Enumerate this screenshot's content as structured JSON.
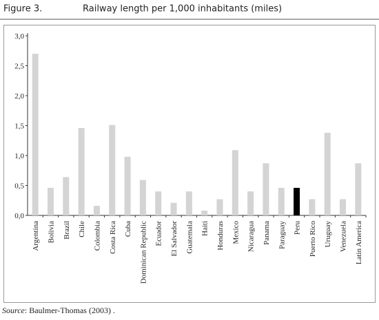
{
  "chart_data": {
    "type": "bar",
    "figure_label": "Figure 3.",
    "title": "Railway length per 1,000 inhabitants (miles)",
    "categories": [
      "Argentina",
      "Bolivia",
      "Brazil",
      "Chile",
      "Colombia",
      "Costa Rica",
      "Cuba",
      "Dominican Republic",
      "Ecuador",
      "El Salvador",
      "Guatemala",
      "Haiti",
      "Honduras",
      "Mexico",
      "Nicaragua",
      "Panama",
      "Paraguay",
      "Peru",
      "Puerto Rico",
      "Uruguay",
      "Venezuela",
      "Latin America"
    ],
    "values": [
      2.7,
      0.46,
      0.64,
      1.46,
      0.16,
      1.51,
      0.98,
      0.59,
      0.4,
      0.21,
      0.4,
      0.08,
      0.27,
      1.09,
      0.4,
      0.87,
      0.46,
      0.46,
      0.27,
      1.38,
      0.27,
      0.87
    ],
    "colors": [
      "#d4d4d4",
      "#d4d4d4",
      "#d4d4d4",
      "#d4d4d4",
      "#d4d4d4",
      "#d4d4d4",
      "#d4d4d4",
      "#d4d4d4",
      "#d4d4d4",
      "#d4d4d4",
      "#d4d4d4",
      "#d4d4d4",
      "#d4d4d4",
      "#d4d4d4",
      "#d4d4d4",
      "#d4d4d4",
      "#d4d4d4",
      "#000000",
      "#d4d4d4",
      "#d4d4d4",
      "#d4d4d4",
      "#d4d4d4"
    ],
    "ylim": [
      0,
      3
    ],
    "yticks": [
      {
        "value": 0,
        "label": "0,0"
      },
      {
        "value": 0.5,
        "label": "0,5"
      },
      {
        "value": 1,
        "label": "1,0"
      },
      {
        "value": 1.5,
        "label": "1,5"
      },
      {
        "value": 2,
        "label": "2,0"
      },
      {
        "value": 2.5,
        "label": "2,5"
      },
      {
        "value": 3,
        "label": "3,0"
      }
    ],
    "grid": false,
    "source_label": "Source",
    "source_text": ": Baulmer-Thomas (2003) ."
  }
}
